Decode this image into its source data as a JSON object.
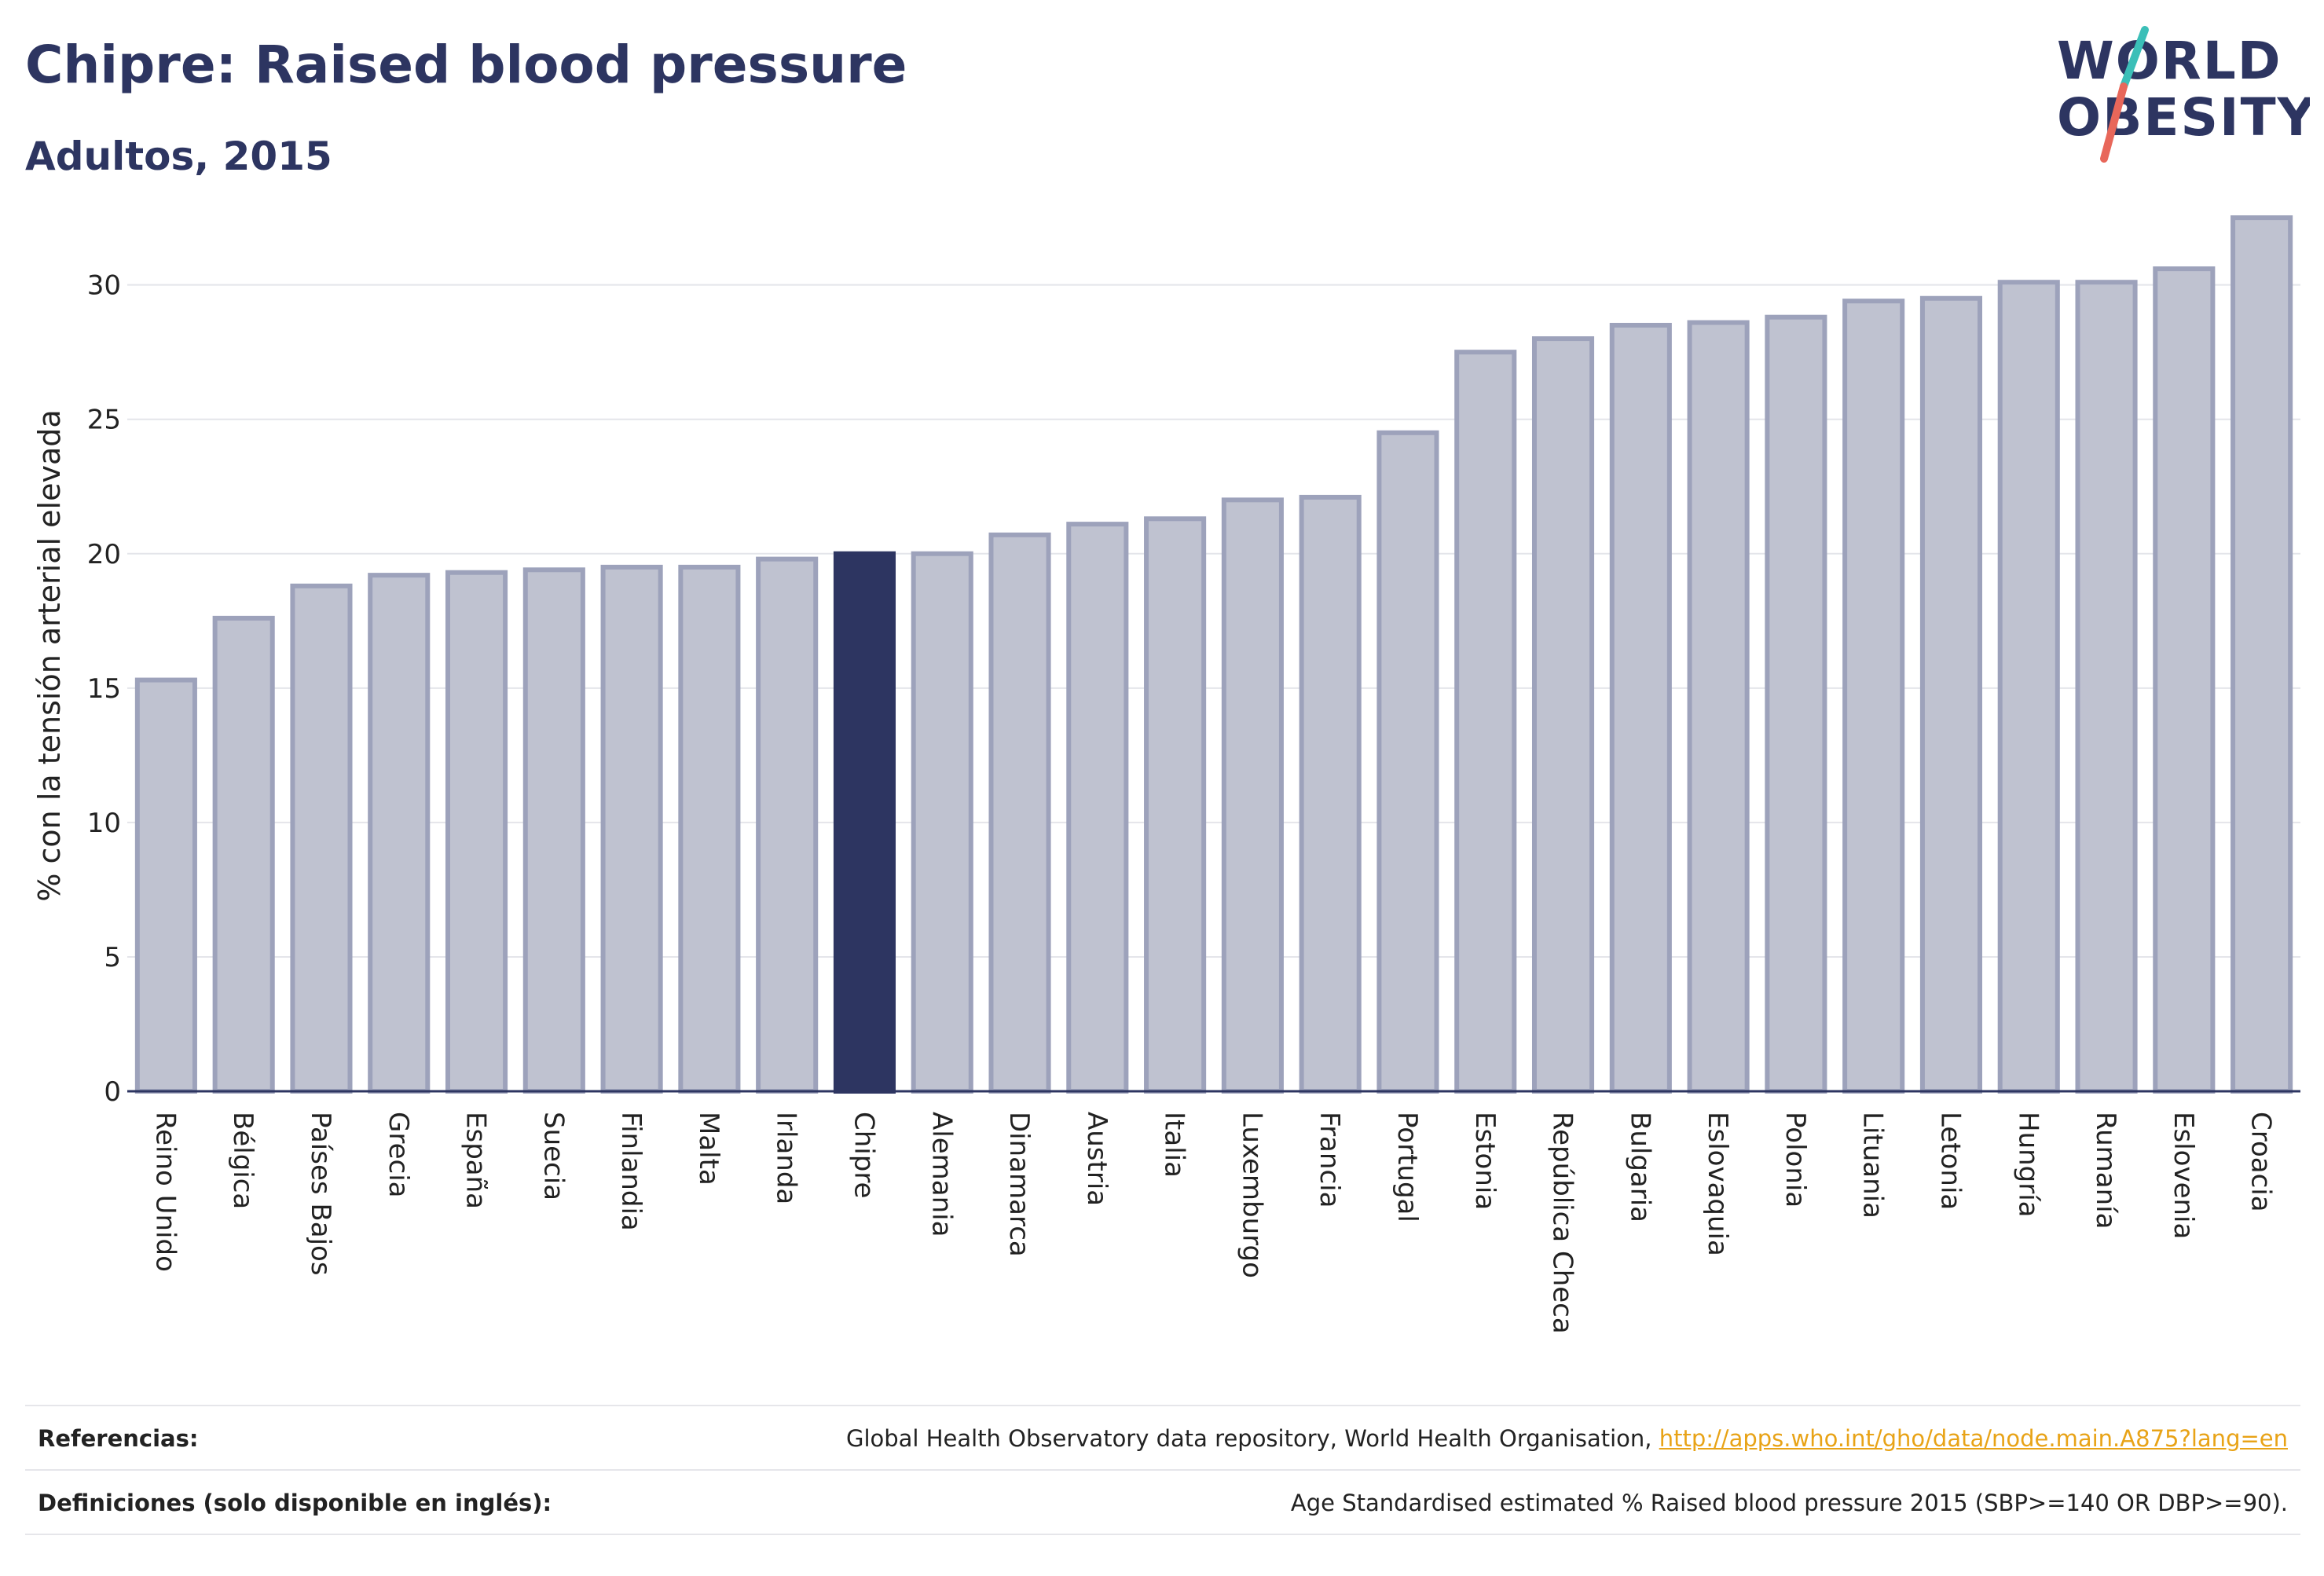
{
  "header": {
    "title": "Chipre: Raised blood pressure",
    "subtitle": "Adultos, 2015"
  },
  "logo": {
    "line1": "WORLD",
    "line2": "OBESITY",
    "colors": {
      "text": "#2d3561",
      "slash_top": "#3bbfb8",
      "slash_bottom": "#e8675a"
    }
  },
  "colors": {
    "bar_default": "#bfc2d0",
    "bar_border": "#9da2bb",
    "bar_highlight": "#2d3561",
    "grid": "#e4e5ea",
    "axis": "#2d3561"
  },
  "chart_data": {
    "type": "bar",
    "ylabel": "% con la tensión arterial elevada",
    "ylim": [
      0,
      33
    ],
    "yticks": [
      0,
      5,
      10,
      15,
      20,
      25,
      30
    ],
    "grid": true,
    "highlight": "Chipre",
    "categories": [
      "Reino Unido",
      "Bélgica",
      "Países Bajos",
      "Grecia",
      "España",
      "Suecia",
      "Finlandia",
      "Malta",
      "Irlanda",
      "Chipre",
      "Alemania",
      "Dinamarca",
      "Austria",
      "Italia",
      "Luxemburgo",
      "Francia",
      "Portugal",
      "Estonia",
      "República Checa",
      "Bulgaria",
      "Eslovaquia",
      "Polonia",
      "Lituania",
      "Letonia",
      "Hungría",
      "Rumanía",
      "Eslovenia",
      "Croacia"
    ],
    "values": [
      15.3,
      17.6,
      18.8,
      19.2,
      19.3,
      19.4,
      19.5,
      19.5,
      19.8,
      20.0,
      20.0,
      20.7,
      21.1,
      21.3,
      22.0,
      22.1,
      24.5,
      27.5,
      28.0,
      28.5,
      28.6,
      28.8,
      29.4,
      29.5,
      30.1,
      30.1,
      30.6,
      32.5
    ]
  },
  "footer": {
    "references_label": "Referencias:",
    "references_text": "Global Health Observatory data repository, World Health Organisation, ",
    "references_link": "http://apps.who.int/gho/data/node.main.A875?lang=en",
    "definitions_label": "Definiciones (solo disponible en inglés):",
    "definitions_text": "Age Standardised estimated % Raised blood pressure 2015 (SBP>=140 OR DBP>=90)."
  }
}
